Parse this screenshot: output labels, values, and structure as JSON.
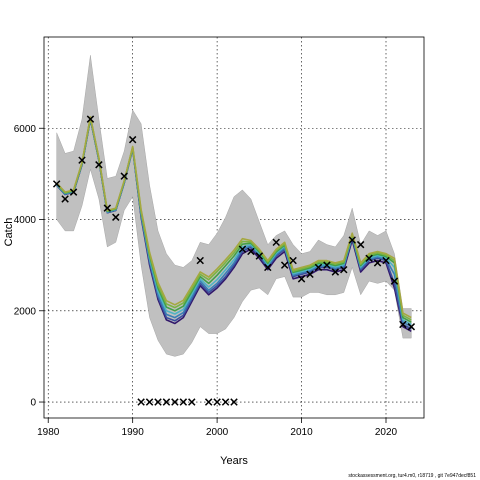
{
  "chart_data": {
    "type": "line",
    "xlabel": "Years",
    "ylabel": "Catch",
    "footer": "stockassessment.org, tur4.m0, r18719 , git 7e947decf851",
    "xlim": [
      1979.5,
      2024.5
    ],
    "ylim": [
      -350,
      8000
    ],
    "x_ticks": [
      1980,
      1990,
      2000,
      2010,
      2020
    ],
    "y_ticks": [
      0,
      2000,
      4000,
      6000
    ],
    "grid": true,
    "colors": {
      "band": "#c0c0c0",
      "band_edge": "#999999",
      "lines": [
        "#31176b",
        "#3b4f9e",
        "#3a7fb5",
        "#4fb3c4",
        "#43a047",
        "#7cb342",
        "#a5a840"
      ],
      "observed_marker": "#000000"
    },
    "years": [
      1981,
      1982,
      1983,
      1984,
      1985,
      1986,
      1987,
      1988,
      1989,
      1990,
      1991,
      1992,
      1993,
      1994,
      1995,
      1996,
      1997,
      1998,
      1999,
      2000,
      2001,
      2002,
      2003,
      2004,
      2005,
      2006,
      2007,
      2008,
      2009,
      2010,
      2011,
      2012,
      2013,
      2014,
      2015,
      2016,
      2017,
      2018,
      2019,
      2020,
      2021,
      2022,
      2023
    ],
    "band_upper": [
      5900,
      5450,
      5500,
      6200,
      7600,
      6200,
      4900,
      4950,
      5500,
      6400,
      6100,
      4750,
      3750,
      3250,
      3000,
      2950,
      3100,
      3500,
      3450,
      3700,
      4050,
      4500,
      4650,
      4450,
      3950,
      3450,
      3650,
      3750,
      3450,
      3250,
      3300,
      3550,
      3450,
      3400,
      3650,
      4250,
      3450,
      3750,
      3650,
      3750,
      3250,
      2050,
      2050
    ],
    "band_lower": [
      4000,
      3750,
      3750,
      4300,
      5100,
      4450,
      3400,
      3500,
      4200,
      4500,
      3000,
      1850,
      1350,
      1050,
      1000,
      1050,
      1300,
      1650,
      1500,
      1500,
      1600,
      1850,
      2200,
      2450,
      2500,
      2350,
      2700,
      2750,
      2300,
      2300,
      2400,
      2400,
      2350,
      2350,
      2400,
      2950,
      2350,
      2650,
      2600,
      2650,
      2450,
      1400,
      1400
    ],
    "series": [
      {
        "values": [
          4750,
          4550,
          4600,
          5200,
          6200,
          5300,
          4150,
          4200,
          4800,
          5550,
          4050,
          3000,
          2250,
          1800,
          1720,
          1850,
          2200,
          2550,
          2350,
          2500,
          2700,
          2950,
          3250,
          3350,
          3150,
          2900,
          3150,
          3300,
          2700,
          2750,
          2800,
          2900,
          2900,
          2850,
          2900,
          3550,
          2850,
          3050,
          3100,
          3050,
          2500,
          1650,
          1550
        ]
      },
      {
        "values": [
          4750,
          4550,
          4600,
          5200,
          6200,
          5300,
          4150,
          4200,
          4800,
          5550,
          4080,
          3050,
          2300,
          1850,
          1780,
          1900,
          2250,
          2600,
          2400,
          2550,
          2750,
          3000,
          3300,
          3400,
          3200,
          2950,
          3200,
          3350,
          2750,
          2800,
          2850,
          2950,
          2950,
          2900,
          2950,
          3600,
          2900,
          3100,
          3150,
          3100,
          2600,
          1700,
          1600
        ]
      },
      {
        "values": [
          4760,
          4560,
          4610,
          5210,
          6210,
          5310,
          4160,
          4210,
          4810,
          5560,
          4100,
          3100,
          2350,
          1920,
          1850,
          1960,
          2300,
          2650,
          2450,
          2600,
          2820,
          3050,
          3350,
          3420,
          3230,
          2980,
          3230,
          3380,
          2780,
          2830,
          2880,
          2980,
          2980,
          2930,
          2980,
          3620,
          2930,
          3130,
          3180,
          3130,
          2800,
          1750,
          1650
        ]
      },
      {
        "values": [
          4770,
          4570,
          4620,
          5220,
          6220,
          5320,
          4170,
          4220,
          4820,
          5570,
          4130,
          3150,
          2420,
          2000,
          1930,
          2030,
          2360,
          2700,
          2520,
          2680,
          2900,
          3120,
          3400,
          3450,
          3260,
          3010,
          3260,
          3410,
          2810,
          2860,
          2910,
          3010,
          3010,
          2960,
          3010,
          3640,
          2960,
          3160,
          3210,
          3160,
          2950,
          1800,
          1700
        ]
      },
      {
        "values": [
          4780,
          4580,
          4630,
          5230,
          6230,
          5330,
          4180,
          4230,
          4830,
          5580,
          4160,
          3200,
          2500,
          2080,
          2000,
          2100,
          2420,
          2750,
          2600,
          2780,
          2990,
          3200,
          3460,
          3480,
          3290,
          3040,
          3290,
          3440,
          2840,
          2890,
          2940,
          3040,
          3040,
          2990,
          3040,
          3660,
          2990,
          3190,
          3240,
          3190,
          3050,
          1850,
          1750
        ]
      },
      {
        "values": [
          4790,
          4590,
          4640,
          5240,
          6240,
          5340,
          4190,
          4240,
          4840,
          5590,
          4190,
          3240,
          2560,
          2150,
          2070,
          2170,
          2480,
          2800,
          2680,
          2860,
          3060,
          3270,
          3520,
          3510,
          3320,
          3070,
          3320,
          3470,
          2870,
          2920,
          2970,
          3070,
          3070,
          3020,
          3070,
          3680,
          3020,
          3220,
          3270,
          3220,
          3100,
          1900,
          1800
        ]
      },
      {
        "values": [
          4800,
          4600,
          4650,
          5250,
          6250,
          5350,
          4200,
          4250,
          4850,
          5600,
          4220,
          3280,
          2620,
          2220,
          2130,
          2230,
          2540,
          2850,
          2740,
          2920,
          3120,
          3330,
          3580,
          3540,
          3350,
          3100,
          3350,
          3500,
          2900,
          2950,
          3000,
          3100,
          3100,
          3050,
          3100,
          3700,
          3050,
          3250,
          3300,
          3250,
          3150,
          1950,
          1850
        ]
      }
    ],
    "observed": {
      "years": [
        1981,
        1982,
        1983,
        1984,
        1985,
        1986,
        1987,
        1988,
        1989,
        1990,
        1991,
        1992,
        1993,
        1994,
        1995,
        1996,
        1997,
        1998,
        1999,
        2000,
        2001,
        2002,
        2003,
        2004,
        2005,
        2006,
        2007,
        2008,
        2009,
        2010,
        2011,
        2012,
        2013,
        2014,
        2015,
        2016,
        2017,
        2018,
        2019,
        2020,
        2021,
        2022,
        2023
      ],
      "values": [
        4780,
        4450,
        4600,
        5300,
        6200,
        5200,
        4250,
        4050,
        4950,
        5750,
        0,
        0,
        0,
        0,
        0,
        0,
        0,
        3100,
        0,
        0,
        0,
        0,
        3350,
        3300,
        3200,
        2950,
        3500,
        3000,
        3100,
        2700,
        2800,
        2950,
        3000,
        2850,
        2900,
        3550,
        3450,
        3150,
        3050,
        3100,
        2650,
        1700,
        1650
      ]
    }
  }
}
